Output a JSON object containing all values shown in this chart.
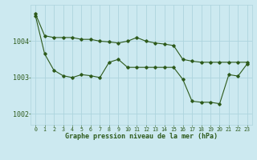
{
  "bg_color": "#cce9f0",
  "grid_color": "#aed4dd",
  "line_color": "#2d5a1b",
  "xlabel": "Graphe pression niveau de la mer (hPa)",
  "xlabel_fontsize": 6.0,
  "ylabel_fontsize": 6.0,
  "tick_fontsize": 4.8,
  "xlim": [
    -0.5,
    23.5
  ],
  "ylim": [
    1001.7,
    1005.0
  ],
  "yticks": [
    1002,
    1003,
    1004
  ],
  "series1_x": [
    0,
    1,
    2,
    3,
    4,
    5,
    6,
    7,
    8,
    9,
    10,
    11,
    12,
    13,
    14,
    15,
    16,
    17,
    18,
    19,
    20,
    21,
    22,
    23
  ],
  "series1_y": [
    1004.75,
    1004.15,
    1004.1,
    1004.1,
    1004.1,
    1004.05,
    1004.05,
    1004.0,
    1003.98,
    1003.95,
    1004.0,
    1004.1,
    1004.0,
    1003.95,
    1003.92,
    1003.88,
    1003.5,
    1003.45,
    1003.42,
    1003.42,
    1003.42,
    1003.42,
    1003.42,
    1003.42
  ],
  "series2_x": [
    0,
    1,
    2,
    3,
    4,
    5,
    6,
    7,
    8,
    9,
    10,
    11,
    12,
    13,
    14,
    15,
    16,
    17,
    18,
    19,
    20,
    21,
    22,
    23
  ],
  "series2_y": [
    1004.7,
    1003.65,
    1003.2,
    1003.05,
    1003.0,
    1003.08,
    1003.05,
    1003.0,
    1003.42,
    1003.5,
    1003.28,
    1003.28,
    1003.28,
    1003.28,
    1003.28,
    1003.28,
    1002.95,
    1002.35,
    1002.32,
    1002.32,
    1002.28,
    1003.08,
    1003.04,
    1003.38
  ]
}
